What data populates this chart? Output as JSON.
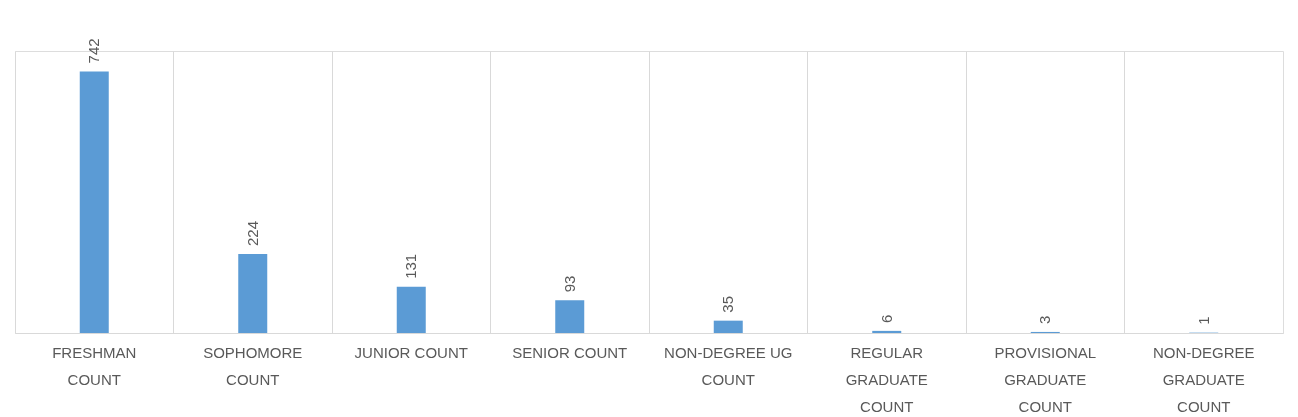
{
  "chart_data": {
    "type": "bar",
    "categories": [
      "FRESHMAN COUNT",
      "SOPHOMORE COUNT",
      "JUNIOR COUNT",
      "SENIOR COUNT",
      "NON-DEGREE UG COUNT",
      "REGULAR GRADUATE COUNT",
      "PROVISIONAL GRADUATE COUNT",
      "NON-DEGREE GRADUATE COUNT"
    ],
    "values": [
      742,
      224,
      131,
      93,
      35,
      6,
      3,
      1
    ],
    "color": "#5b9bd5",
    "data_labels": true,
    "grid": "x",
    "tick_labels": "x"
  }
}
